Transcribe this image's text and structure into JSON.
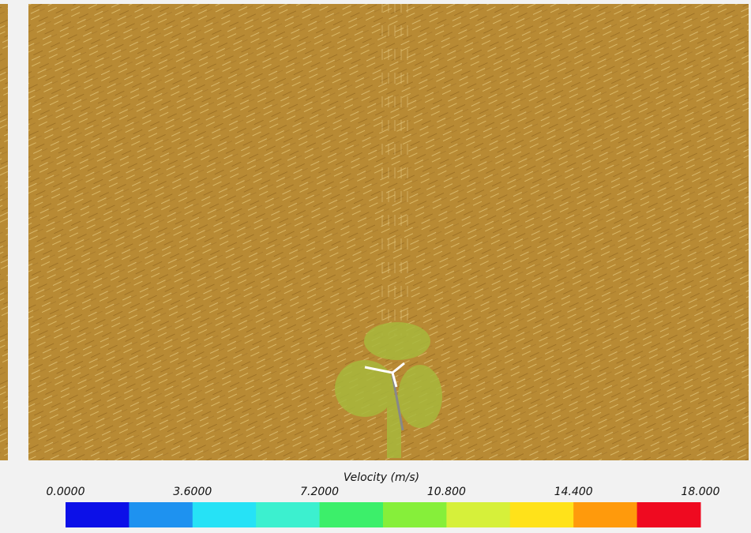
{
  "colorbar": {
    "title": "Velocity (m/s)",
    "tick_labels": [
      "0.0000",
      "3.6000",
      "7.2000",
      "10.800",
      "14.400",
      "18.000"
    ],
    "colors": [
      "#0c10e8",
      "#1e92f0",
      "#26e2f6",
      "#3cf0cf",
      "#3cef6a",
      "#86ef3a",
      "#d6f03a",
      "#ffe21a",
      "#ff9a0c",
      "#ef0a20"
    ]
  }
}
